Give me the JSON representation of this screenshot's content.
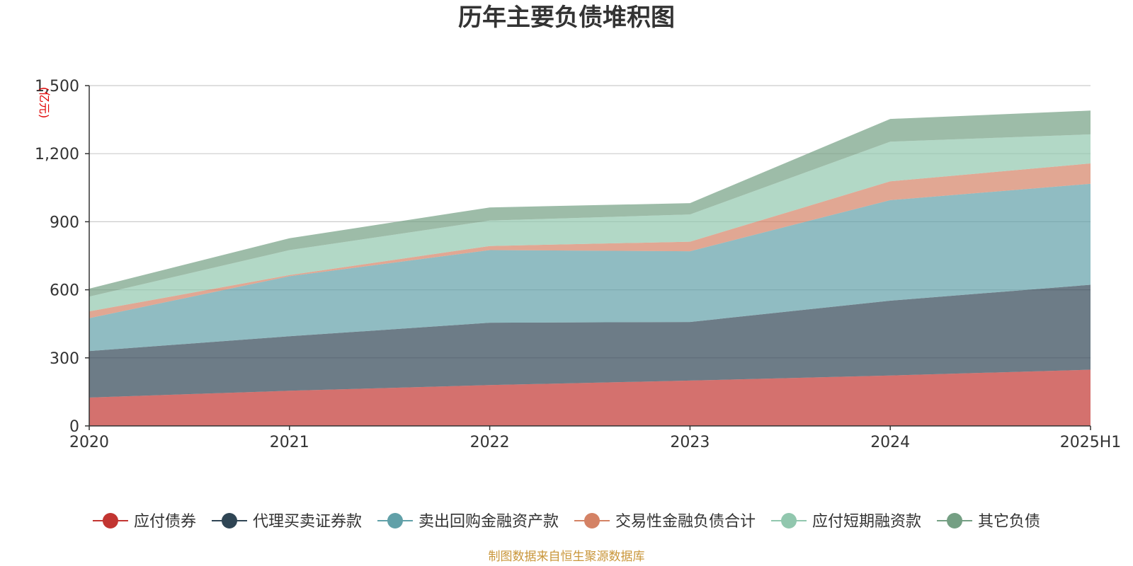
{
  "chart_data": {
    "type": "area",
    "stacked": true,
    "title": "历年主要负债堆积图",
    "unit": "(亿元)",
    "categories": [
      "2020",
      "2021",
      "2022",
      "2023",
      "2024",
      "2025H1"
    ],
    "ylim": [
      0,
      1500
    ],
    "yticks": [
      0,
      300,
      600,
      900,
      1200,
      1500
    ],
    "ytick_labels": [
      "0",
      "300",
      "600",
      "900",
      "1,200",
      "1,500"
    ],
    "grid": true,
    "legend_position": "bottom",
    "series": [
      {
        "name": "应付债券",
        "color": "#c23531",
        "values": [
          125,
          155,
          180,
          200,
          222,
          248
        ]
      },
      {
        "name": "代理买卖证券款",
        "color": "#2f4554",
        "values": [
          205,
          240,
          275,
          258,
          330,
          374
        ]
      },
      {
        "name": "卖出回购金融资产款",
        "color": "#61a0a8",
        "values": [
          145,
          265,
          320,
          312,
          443,
          445
        ]
      },
      {
        "name": "交易性金融负债合计",
        "color": "#d48265",
        "values": [
          30,
          5,
          18,
          42,
          83,
          90
        ]
      },
      {
        "name": "应付短期融资款",
        "color": "#91c7ae",
        "values": [
          65,
          110,
          112,
          120,
          175,
          128
        ]
      },
      {
        "name": "其它负债",
        "color": "#749f83",
        "values": [
          35,
          52,
          58,
          50,
          100,
          105
        ]
      }
    ],
    "source": "制图数据来自恒生聚源数据库"
  }
}
